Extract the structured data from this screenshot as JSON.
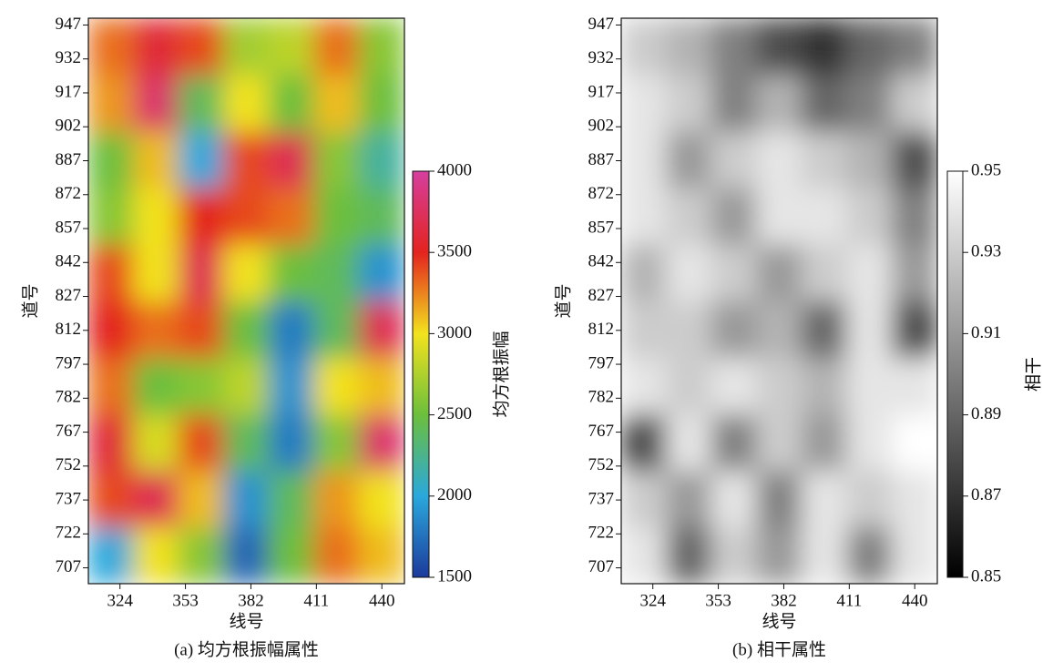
{
  "chart_data": [
    {
      "type": "heatmap",
      "caption": "(a) 均方根振幅属性",
      "xlabel": "线号",
      "ylabel": "道号",
      "colorbar_label": "均方根振幅",
      "xlim": [
        310,
        450
      ],
      "ylim": [
        700,
        950
      ],
      "xticks": [
        324,
        353,
        382,
        411,
        440
      ],
      "yticks": [
        707,
        722,
        737,
        752,
        767,
        782,
        797,
        812,
        827,
        842,
        857,
        872,
        887,
        902,
        917,
        932,
        947
      ],
      "clim": [
        1500,
        4000
      ],
      "cticks": [
        1500,
        2000,
        2500,
        3000,
        3500,
        4000
      ],
      "colormap": [
        "#1c3a9c",
        "#2aa8dc",
        "#6cbf3c",
        "#f2e21e",
        "#e3231e",
        "#d63f9f"
      ],
      "x": [
        320,
        340,
        360,
        380,
        400,
        420,
        440
      ],
      "y": [
        712.5,
        737.5,
        762.5,
        787.5,
        812.5,
        837.5,
        862.5,
        887.5,
        912.5,
        937.5
      ],
      "z": [
        [
          2000,
          3000,
          2600,
          1700,
          2500,
          3300,
          3100
        ],
        [
          3400,
          3700,
          3100,
          1900,
          2400,
          3200,
          3000
        ],
        [
          3600,
          2900,
          3400,
          2400,
          1800,
          2600,
          3800
        ],
        [
          3300,
          2500,
          2600,
          2800,
          1900,
          3000,
          3100
        ],
        [
          3500,
          3300,
          3400,
          2500,
          1800,
          2400,
          3700
        ],
        [
          3400,
          3000,
          3700,
          3000,
          2500,
          2400,
          1900
        ],
        [
          2600,
          3000,
          3500,
          3400,
          3300,
          2500,
          2400
        ],
        [
          2500,
          3100,
          2000,
          3400,
          3700,
          2600,
          2200
        ],
        [
          3200,
          3800,
          2400,
          3000,
          2500,
          3100,
          2500
        ],
        [
          3300,
          3600,
          3400,
          2700,
          2800,
          3300,
          2600
        ]
      ]
    },
    {
      "type": "heatmap",
      "caption": "(b) 相干属性",
      "xlabel": "线号",
      "ylabel": "道号",
      "colorbar_label": "相干",
      "xlim": [
        310,
        450
      ],
      "ylim": [
        700,
        950
      ],
      "xticks": [
        324,
        353,
        382,
        411,
        440
      ],
      "yticks": [
        707,
        722,
        737,
        752,
        767,
        782,
        797,
        812,
        827,
        842,
        857,
        872,
        887,
        902,
        917,
        932,
        947
      ],
      "clim": [
        0.85,
        0.95
      ],
      "cticks": [
        0.85,
        0.87,
        0.89,
        0.91,
        0.93,
        0.95
      ],
      "colormap": [
        "#000000",
        "#ffffff"
      ],
      "x": [
        320,
        340,
        360,
        380,
        400,
        420,
        440
      ],
      "y": [
        712.5,
        737.5,
        762.5,
        787.5,
        812.5,
        837.5,
        862.5,
        887.5,
        912.5,
        937.5
      ],
      "z": [
        [
          0.94,
          0.89,
          0.93,
          0.91,
          0.94,
          0.9,
          0.94
        ],
        [
          0.93,
          0.91,
          0.94,
          0.9,
          0.94,
          0.93,
          0.94
        ],
        [
          0.88,
          0.94,
          0.9,
          0.93,
          0.91,
          0.94,
          0.95
        ],
        [
          0.94,
          0.93,
          0.94,
          0.93,
          0.92,
          0.94,
          0.94
        ],
        [
          0.93,
          0.93,
          0.91,
          0.92,
          0.89,
          0.94,
          0.88
        ],
        [
          0.92,
          0.94,
          0.93,
          0.91,
          0.93,
          0.94,
          0.91
        ],
        [
          0.94,
          0.93,
          0.91,
          0.94,
          0.94,
          0.93,
          0.9
        ],
        [
          0.94,
          0.91,
          0.93,
          0.94,
          0.93,
          0.92,
          0.88
        ],
        [
          0.94,
          0.93,
          0.9,
          0.92,
          0.89,
          0.9,
          0.93
        ],
        [
          0.93,
          0.92,
          0.9,
          0.88,
          0.87,
          0.89,
          0.9
        ]
      ]
    }
  ]
}
